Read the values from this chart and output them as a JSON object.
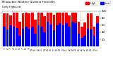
{
  "title": "Milwaukee Weather Outdoor Humidity",
  "subtitle": "Daily High/Low",
  "high_color": "#ff0000",
  "low_color": "#0000ff",
  "background_color": "#ffffff",
  "plot_bg_color": "#ffffff",
  "grid_color": "#cccccc",
  "ylim": [
    0,
    100
  ],
  "days": [
    1,
    2,
    3,
    4,
    5,
    6,
    7,
    8,
    9,
    10,
    11,
    12,
    13,
    14,
    15,
    16,
    17,
    18,
    19,
    20,
    21,
    22,
    23,
    24,
    25,
    26,
    27,
    28,
    29,
    30,
    31
  ],
  "highs": [
    93,
    93,
    87,
    95,
    95,
    70,
    93,
    95,
    93,
    95,
    75,
    95,
    95,
    85,
    95,
    95,
    90,
    95,
    95,
    95,
    95,
    88,
    95,
    95,
    70,
    55,
    68,
    93,
    93,
    55,
    85
  ],
  "lows": [
    55,
    48,
    60,
    55,
    52,
    30,
    50,
    55,
    50,
    55,
    35,
    60,
    55,
    40,
    70,
    62,
    45,
    60,
    65,
    60,
    65,
    55,
    70,
    65,
    35,
    25,
    30,
    50,
    48,
    30,
    65
  ],
  "vline_pos": 24.5,
  "yticks": [
    20,
    40,
    60,
    80,
    100
  ],
  "ylabel_right": true
}
